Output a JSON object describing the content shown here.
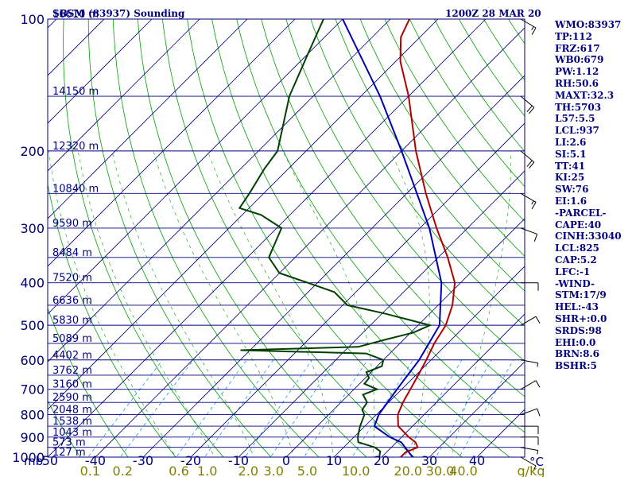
{
  "header": {
    "station_title": "SBSM (83937) Sounding",
    "time_title": "1200Z 28 MAR 20"
  },
  "stats": [
    "WMO:83937",
    "TP:112",
    "FRZ:617",
    "WB0:679",
    "PW:1.12",
    "RH:50.6",
    "MAXT:32.3",
    "TH:5703",
    "L57:5.5",
    "LCL:937",
    "LI:2.6",
    "SI:5.1",
    "TT:41",
    "KI:25",
    "SW:76",
    "EI:1.6",
    "-PARCEL-",
    "CAPE:40",
    "CINH:33040",
    "LCL:825",
    "CAP:5.2",
    "LFC:-1",
    "-WIND-",
    "STM:17/9",
    "HEL:-43",
    "SHR+:0.0",
    "SRDS:98",
    "EHI:0.0",
    "BRN:8.6",
    "BSHR:5"
  ],
  "colors": {
    "frame": "#000080",
    "isobar": "#000080",
    "isotherm": "#000080",
    "dry_adiabat": "#00a000",
    "moist_adiabat": "#006000",
    "mixing_ratio": "#1e90ff",
    "temperature": "#b00000",
    "dewpoint": "#004000",
    "parcel": "#0000b0",
    "wind_barb": "#000000",
    "axis_text": "#000080",
    "mixing_text": "#808000"
  },
  "chart_data": {
    "type": "skew-t",
    "y_axis_unit": "mb",
    "x_axis_unit": "°C",
    "mixing_ratio_unit": "g/kg",
    "pressure_labels": [
      100,
      200,
      300,
      400,
      500,
      600,
      700,
      800,
      900,
      1000
    ],
    "temperature_labels": [
      -50,
      -40,
      -30,
      -20,
      -10,
      0,
      10,
      20,
      30,
      40
    ],
    "xlim": [
      -50,
      50
    ],
    "ylim": [
      1000,
      100
    ],
    "mixing_ratio_labels": [
      "0.1",
      "0.2",
      "0.6",
      "1.0",
      "2.0",
      "3.0",
      "5.0",
      "10.0",
      "20.0",
      "30.0",
      "40.0"
    ],
    "heights": [
      {
        "p": 100,
        "label": "16610 m"
      },
      {
        "p": 150,
        "label": "14150 m"
      },
      {
        "p": 200,
        "label": "12320 m"
      },
      {
        "p": 250,
        "label": "10840 m"
      },
      {
        "p": 300,
        "label": "9590 m"
      },
      {
        "p": 350,
        "label": "8484 m"
      },
      {
        "p": 400,
        "label": "7520 m"
      },
      {
        "p": 450,
        "label": "6636 m"
      },
      {
        "p": 500,
        "label": "5830 m"
      },
      {
        "p": 550,
        "label": "5089 m"
      },
      {
        "p": 600,
        "label": "4402 m"
      },
      {
        "p": 650,
        "label": "3762 m"
      },
      {
        "p": 700,
        "label": "3160 m"
      },
      {
        "p": 750,
        "label": "2590 m"
      },
      {
        "p": 800,
        "label": "2048 m"
      },
      {
        "p": 850,
        "label": "1538 m"
      },
      {
        "p": 900,
        "label": "1043 m"
      },
      {
        "p": 950,
        "label": "573 m"
      },
      {
        "p": 1000,
        "label": "127 m"
      }
    ],
    "temperature_profile": [
      [
        1000,
        24.0
      ],
      [
        975,
        24.0
      ],
      [
        950,
        25.5
      ],
      [
        925,
        24.0
      ],
      [
        900,
        21.5
      ],
      [
        850,
        17.0
      ],
      [
        800,
        14.5
      ],
      [
        750,
        13.0
      ],
      [
        700,
        11.8
      ],
      [
        650,
        10.5
      ],
      [
        600,
        9.0
      ],
      [
        550,
        7.2
      ],
      [
        500,
        5.8
      ],
      [
        450,
        3.0
      ],
      [
        400,
        -1.2
      ],
      [
        350,
        -8.0
      ],
      [
        300,
        -16.5
      ],
      [
        250,
        -26.0
      ],
      [
        200,
        -37.0
      ],
      [
        150,
        -50.0
      ],
      [
        125,
        -59.0
      ],
      [
        110,
        -64.0
      ],
      [
        100,
        -66.0
      ]
    ],
    "dewpoint_profile": [
      [
        1000,
        19.5
      ],
      [
        970,
        18.5
      ],
      [
        950,
        16.5
      ],
      [
        925,
        12.0
      ],
      [
        900,
        10.8
      ],
      [
        850,
        9.0
      ],
      [
        800,
        7.5
      ],
      [
        780,
        6.0
      ],
      [
        750,
        5.5
      ],
      [
        720,
        3.0
      ],
      [
        700,
        4.8
      ],
      [
        680,
        1.0
      ],
      [
        660,
        0.8
      ],
      [
        640,
        -1.0
      ],
      [
        620,
        1.0
      ],
      [
        600,
        0.0
      ],
      [
        580,
        -5.0
      ],
      [
        570,
        -32.0
      ],
      [
        560,
        -8.0
      ],
      [
        540,
        -4.0
      ],
      [
        520,
        0.5
      ],
      [
        500,
        2.5
      ],
      [
        470,
        -9.5
      ],
      [
        450,
        -19.0
      ],
      [
        420,
        -24.5
      ],
      [
        400,
        -32.0
      ],
      [
        380,
        -40.0
      ],
      [
        350,
        -45.5
      ],
      [
        300,
        -49.0
      ],
      [
        280,
        -56.0
      ],
      [
        270,
        -62.0
      ],
      [
        250,
        -63.0
      ],
      [
        220,
        -65.0
      ],
      [
        200,
        -66.0
      ],
      [
        150,
        -75.0
      ],
      [
        120,
        -80.0
      ],
      [
        100,
        -84.0
      ]
    ],
    "parcel_profile": [
      [
        1000,
        26.5
      ],
      [
        925,
        21.0
      ],
      [
        900,
        17.5
      ],
      [
        850,
        12.0
      ],
      [
        800,
        10.5
      ],
      [
        700,
        9.0
      ],
      [
        600,
        7.5
      ],
      [
        500,
        4.5
      ],
      [
        400,
        -4.0
      ],
      [
        300,
        -18.0
      ],
      [
        200,
        -40.0
      ],
      [
        150,
        -56.0
      ],
      [
        100,
        -80.0
      ]
    ],
    "winds": [
      {
        "p": 1000,
        "dir": 120,
        "spd": 5
      },
      {
        "p": 950,
        "dir": 100,
        "spd": 5
      },
      {
        "p": 900,
        "dir": 90,
        "spd": 10
      },
      {
        "p": 850,
        "dir": 90,
        "spd": 10
      },
      {
        "p": 800,
        "dir": 70,
        "spd": 10
      },
      {
        "p": 700,
        "dir": 60,
        "spd": 10
      },
      {
        "p": 600,
        "dir": 100,
        "spd": 5
      },
      {
        "p": 500,
        "dir": 60,
        "spd": 10
      },
      {
        "p": 400,
        "dir": 90,
        "spd": 10
      },
      {
        "p": 300,
        "dir": 110,
        "spd": 10
      },
      {
        "p": 250,
        "dir": 120,
        "spd": 15
      },
      {
        "p": 200,
        "dir": 130,
        "spd": 20
      },
      {
        "p": 150,
        "dir": 130,
        "spd": 20
      },
      {
        "p": 100,
        "dir": 120,
        "spd": 15
      }
    ]
  }
}
